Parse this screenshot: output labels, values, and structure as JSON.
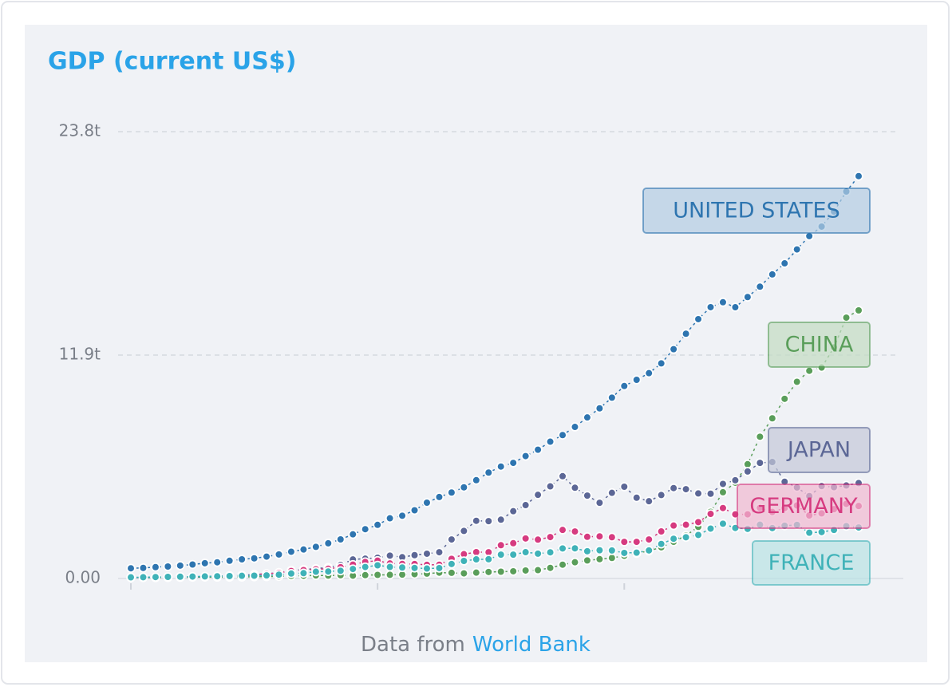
{
  "chart_data": {
    "type": "line",
    "title": "GDP (current US$)",
    "categories": [
      null,
      null,
      null,
      null,
      null,
      null,
      null,
      null,
      null,
      null,
      null,
      null,
      null,
      null,
      null,
      null,
      null,
      null,
      null,
      null,
      null,
      null,
      null,
      null,
      null,
      null,
      null,
      null,
      null,
      null,
      null,
      null,
      null,
      null,
      null,
      null,
      null,
      null,
      null,
      null,
      null,
      null,
      null,
      null,
      null,
      null,
      null,
      null,
      null,
      null,
      null,
      null,
      null,
      null,
      null,
      null,
      null,
      null,
      null,
      null
    ],
    "ylim": [
      0,
      23.8
    ],
    "yticks": [
      {
        "value": 0,
        "label": "0.00"
      },
      {
        "value": 11.9,
        "label": "11.9t"
      },
      {
        "value": 23.8,
        "label": "23.8t"
      }
    ],
    "grid": true,
    "series": [
      {
        "name": "UNITED STATES",
        "color": "#2e75b0",
        "values": [
          0.543,
          0.563,
          0.605,
          0.638,
          0.686,
          0.744,
          0.815,
          0.862,
          0.943,
          1.02,
          1.073,
          1.165,
          1.28,
          1.425,
          1.545,
          1.684,
          1.873,
          2.082,
          2.352,
          2.627,
          2.857,
          3.207,
          3.343,
          3.634,
          4.037,
          4.339,
          4.58,
          4.855,
          5.236,
          5.642,
          5.963,
          6.158,
          6.52,
          6.859,
          7.287,
          7.64,
          8.073,
          8.578,
          9.063,
          9.631,
          10.252,
          10.582,
          10.936,
          11.458,
          12.214,
          13.037,
          13.815,
          14.452,
          14.713,
          14.449,
          14.992,
          15.543,
          16.197,
          16.785,
          17.527,
          18.238,
          18.745,
          19.543,
          20.612,
          21.433
        ]
      },
      {
        "name": "CHINA",
        "color": "#5a9e5a",
        "values": [
          0.0597,
          0.05,
          0.0472,
          0.0507,
          0.0597,
          0.0704,
          0.0768,
          0.0721,
          0.07,
          0.0787,
          0.0926,
          0.0998,
          0.1137,
          0.1385,
          0.1442,
          0.1634,
          0.1539,
          0.1749,
          0.1495,
          0.1783,
          0.1911,
          0.1958,
          0.2051,
          0.2303,
          0.2599,
          0.3094,
          0.3008,
          0.2723,
          0.3123,
          0.3477,
          0.3609,
          0.3834,
          0.4265,
          0.4447,
          0.5643,
          0.7343,
          0.8637,
          0.9615,
          1.029,
          1.094,
          1.2113,
          1.3394,
          1.4706,
          1.6603,
          1.9553,
          2.286,
          2.7521,
          3.5503,
          4.5943,
          5.1017,
          6.0872,
          7.5515,
          8.5322,
          9.5704,
          10.4757,
          11.0616,
          11.2333,
          12.3104,
          13.8948,
          14.2799
        ]
      },
      {
        "name": "JAPAN",
        "color": "#5c6796",
        "values": [
          0.0443,
          0.0537,
          0.0607,
          0.0699,
          0.0817,
          0.091,
          0.1056,
          0.1237,
          0.1469,
          0.172,
          0.2127,
          0.2401,
          0.3184,
          0.432,
          0.4794,
          0.5217,
          0.5867,
          0.7214,
          1.0139,
          1.0552,
          1.1053,
          1.2181,
          1.1347,
          1.2435,
          1.3187,
          1.3987,
          2.0785,
          2.5327,
          3.0714,
          3.0541,
          3.1328,
          3.5842,
          3.9088,
          4.4546,
          4.907,
          5.4491,
          4.8332,
          4.4146,
          4.0323,
          4.5622,
          4.8875,
          4.3036,
          4.1152,
          4.4457,
          4.8151,
          4.7554,
          4.5304,
          4.5153,
          5.0379,
          5.2314,
          5.7001,
          6.1575,
          6.2032,
          5.1557,
          4.8504,
          4.3895,
          4.9228,
          4.8668,
          4.9548,
          5.0818
        ]
      },
      {
        "name": "GERMANY",
        "color": "#d63b80",
        "values": [
          null,
          null,
          null,
          null,
          null,
          null,
          null,
          null,
          null,
          null,
          0.216,
          0.2496,
          0.2999,
          0.3987,
          0.4456,
          0.4899,
          0.5191,
          0.6,
          0.7406,
          0.8813,
          0.9503,
          0.8003,
          0.7761,
          0.7703,
          0.7253,
          0.7346,
          1.047,
          1.2941,
          1.4038,
          1.3989,
          1.772,
          1.8794,
          2.1324,
          2.071,
          2.2058,
          2.5859,
          2.5038,
          2.2184,
          2.2437,
          2.1994,
          1.95,
          1.9504,
          2.0794,
          2.5059,
          2.8194,
          2.8614,
          3.0026,
          3.4399,
          3.7521,
          3.4184,
          3.4173,
          3.7577,
          3.5439,
          3.7525,
          3.8901,
          3.3576,
          3.4689,
          3.6903,
          3.9749,
          3.8611
        ]
      },
      {
        "name": "FRANCE",
        "color": "#3fb2b8",
        "values": [
          0.0623,
          0.0678,
          0.0758,
          0.0849,
          0.0942,
          0.1017,
          0.1104,
          0.119,
          0.1296,
          0.1408,
          0.1485,
          0.165,
          0.2035,
          0.2641,
          0.286,
          0.3604,
          0.3728,
          0.4109,
          0.5068,
          0.6132,
          0.701,
          0.6155,
          0.5845,
          0.5587,
          0.5301,
          0.5533,
          0.771,
          0.9348,
          1.0187,
          1.0254,
          1.2694,
          1.2699,
          1.4016,
          1.3226,
          1.3938,
          1.6014,
          1.6054,
          1.4522,
          1.503,
          1.4922,
          1.3622,
          1.3764,
          1.4943,
          1.8403,
          2.1159,
          2.1962,
          2.3186,
          2.6573,
          2.9182,
          2.6902,
          2.6426,
          2.8617,
          2.6835,
          2.8111,
          2.8524,
          2.4383,
          2.4713,
          2.5865,
          2.7876,
          2.7155
        ]
      }
    ],
    "source": {
      "prefix": "Data from",
      "link": "World Bank"
    }
  }
}
